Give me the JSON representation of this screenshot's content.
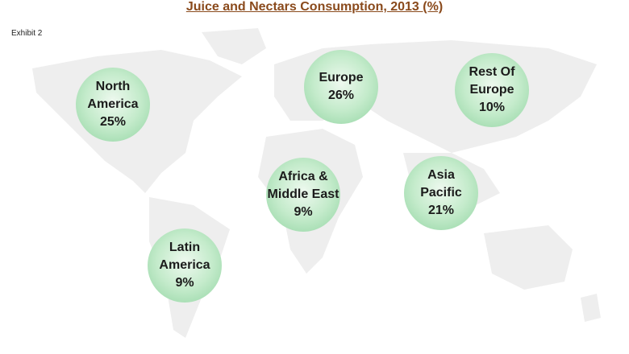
{
  "title": "Juice and Nectars Consumption, 2013 (%)",
  "exhibit": "Exhibit 2",
  "regions": [
    {
      "lines": [
        "North",
        "America"
      ],
      "value": "25%"
    },
    {
      "lines": [
        "Europe"
      ],
      "value": "26%"
    },
    {
      "lines": [
        "Rest Of",
        "Europe"
      ],
      "value": "10%"
    },
    {
      "lines": [
        "Africa &",
        "Middle East"
      ],
      "value": "9%"
    },
    {
      "lines": [
        "Asia",
        "Pacific"
      ],
      "value": "21%"
    },
    {
      "lines": [
        "Latin",
        "America"
      ],
      "value": "9%"
    }
  ]
}
